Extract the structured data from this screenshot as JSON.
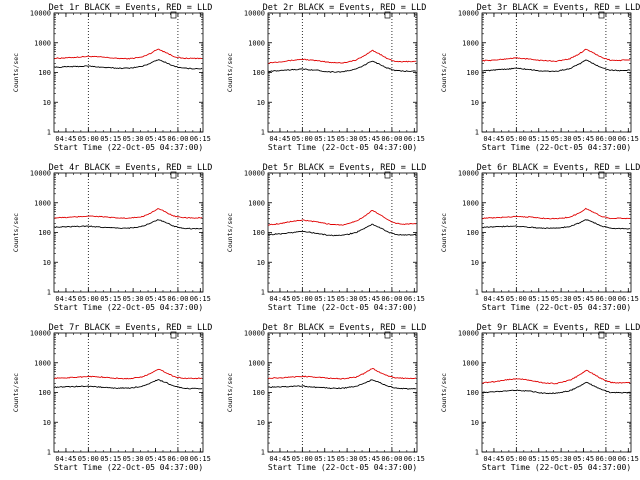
{
  "colors": {
    "events": "#000000",
    "lld": "#e00000",
    "background": "#ffffff"
  },
  "shared": {
    "ylabel": "Counts/sec",
    "xlabel": "Start Time (22-Oct-05 04:37:00)",
    "y_scale": "log",
    "ylim": [
      1,
      10000
    ],
    "y_tick_values": [
      1,
      10,
      100,
      1000,
      10000
    ],
    "y_tick_labels": [
      "1",
      "10",
      "100",
      "1000",
      "10000"
    ],
    "x_tick_labels": [
      "04:45",
      "05:00",
      "05:15",
      "05:30",
      "05:45",
      "06:00",
      "06:15"
    ],
    "x_tick_hours": [
      4.75,
      5.0,
      5.25,
      5.5,
      5.75,
      6.0,
      6.25
    ],
    "xlim_hours": [
      4.6167,
      6.28
    ],
    "vertical_dotted_lines_hours": [
      5.0,
      6.0
    ]
  },
  "chart_data": [
    {
      "type": "line",
      "title": "Det 1r BLACK = Events, RED = LLD",
      "x_hours": [
        4.62,
        4.75,
        4.9,
        5.0,
        5.15,
        5.3,
        5.45,
        5.6,
        5.7,
        5.78,
        5.86,
        5.95,
        6.05,
        6.15,
        6.27
      ],
      "series": [
        {
          "name": "LLD",
          "color": "#e00000",
          "values": [
            300,
            310,
            330,
            350,
            330,
            300,
            290,
            330,
            450,
            620,
            480,
            350,
            300,
            300,
            300
          ]
        },
        {
          "name": "Events",
          "color": "#000000",
          "values": [
            150,
            155,
            160,
            165,
            150,
            140,
            140,
            160,
            210,
            270,
            220,
            165,
            140,
            135,
            135
          ]
        }
      ]
    },
    {
      "type": "line",
      "title": "Det 2r BLACK = Events, RED = LLD",
      "x_hours": [
        4.62,
        4.75,
        4.9,
        5.0,
        5.15,
        5.3,
        5.45,
        5.6,
        5.7,
        5.78,
        5.86,
        5.95,
        6.05,
        6.15,
        6.27
      ],
      "series": [
        {
          "name": "LLD",
          "color": "#e00000",
          "values": [
            210,
            230,
            260,
            280,
            250,
            220,
            210,
            260,
            380,
            560,
            420,
            290,
            230,
            230,
            240
          ]
        },
        {
          "name": "Events",
          "color": "#000000",
          "values": [
            110,
            115,
            125,
            130,
            120,
            105,
            105,
            130,
            180,
            250,
            190,
            140,
            115,
            110,
            115
          ]
        }
      ]
    },
    {
      "type": "line",
      "title": "Det 3r BLACK = Events, RED = LLD",
      "x_hours": [
        4.62,
        4.75,
        4.9,
        5.0,
        5.15,
        5.3,
        5.45,
        5.6,
        5.7,
        5.78,
        5.86,
        5.95,
        6.05,
        6.15,
        6.27
      ],
      "series": [
        {
          "name": "LLD",
          "color": "#e00000",
          "values": [
            250,
            260,
            290,
            310,
            280,
            250,
            240,
            290,
            420,
            620,
            460,
            320,
            260,
            255,
            265
          ]
        },
        {
          "name": "Events",
          "color": "#000000",
          "values": [
            115,
            120,
            130,
            140,
            125,
            110,
            110,
            135,
            190,
            260,
            200,
            145,
            120,
            115,
            120
          ]
        }
      ]
    },
    {
      "type": "line",
      "title": "Det 4r BLACK = Events, RED = LLD",
      "x_hours": [
        4.62,
        4.75,
        4.9,
        5.0,
        5.15,
        5.3,
        5.45,
        5.6,
        5.7,
        5.78,
        5.86,
        5.95,
        6.05,
        6.15,
        6.27
      ],
      "series": [
        {
          "name": "LLD",
          "color": "#e00000",
          "values": [
            310,
            320,
            340,
            360,
            340,
            310,
            300,
            340,
            460,
            640,
            490,
            360,
            310,
            310,
            310
          ]
        },
        {
          "name": "Events",
          "color": "#000000",
          "values": [
            150,
            155,
            160,
            165,
            150,
            140,
            140,
            160,
            210,
            270,
            220,
            165,
            140,
            135,
            135
          ]
        }
      ]
    },
    {
      "type": "line",
      "title": "Det 5r BLACK = Events, RED = LLD",
      "x_hours": [
        4.62,
        4.75,
        4.9,
        5.0,
        5.15,
        5.3,
        5.45,
        5.6,
        5.7,
        5.78,
        5.86,
        5.95,
        6.05,
        6.15,
        6.27
      ],
      "series": [
        {
          "name": "LLD",
          "color": "#e00000",
          "values": [
            180,
            200,
            240,
            260,
            230,
            190,
            180,
            240,
            360,
            550,
            410,
            270,
            200,
            190,
            200
          ]
        },
        {
          "name": "Events",
          "color": "#000000",
          "values": [
            85,
            90,
            100,
            110,
            95,
            80,
            80,
            100,
            140,
            190,
            150,
            105,
            85,
            82,
            85
          ]
        }
      ]
    },
    {
      "type": "line",
      "title": "Det 6r BLACK = Events, RED = LLD",
      "x_hours": [
        4.62,
        4.75,
        4.9,
        5.0,
        5.15,
        5.3,
        5.45,
        5.6,
        5.7,
        5.78,
        5.86,
        5.95,
        6.05,
        6.15,
        6.27
      ],
      "series": [
        {
          "name": "LLD",
          "color": "#e00000",
          "values": [
            300,
            310,
            330,
            350,
            330,
            300,
            290,
            330,
            450,
            640,
            480,
            350,
            300,
            300,
            300
          ]
        },
        {
          "name": "Events",
          "color": "#000000",
          "values": [
            150,
            155,
            160,
            165,
            150,
            140,
            140,
            160,
            210,
            270,
            220,
            165,
            140,
            135,
            135
          ]
        }
      ]
    },
    {
      "type": "line",
      "title": "Det 7r BLACK = Events, RED = LLD",
      "x_hours": [
        4.62,
        4.75,
        4.9,
        5.0,
        5.15,
        5.3,
        5.45,
        5.6,
        5.7,
        5.78,
        5.86,
        5.95,
        6.05,
        6.15,
        6.27
      ],
      "series": [
        {
          "name": "LLD",
          "color": "#e00000",
          "values": [
            300,
            310,
            330,
            350,
            330,
            300,
            290,
            330,
            450,
            620,
            480,
            350,
            300,
            300,
            300
          ]
        },
        {
          "name": "Events",
          "color": "#000000",
          "values": [
            150,
            155,
            160,
            165,
            150,
            140,
            140,
            160,
            210,
            270,
            220,
            165,
            140,
            135,
            135
          ]
        }
      ]
    },
    {
      "type": "line",
      "title": "Det 8r BLACK = Events, RED = LLD",
      "x_hours": [
        4.62,
        4.75,
        4.9,
        5.0,
        5.15,
        5.3,
        5.45,
        5.6,
        5.7,
        5.78,
        5.86,
        5.95,
        6.05,
        6.15,
        6.27
      ],
      "series": [
        {
          "name": "LLD",
          "color": "#e00000",
          "values": [
            300,
            310,
            330,
            350,
            330,
            300,
            290,
            330,
            450,
            650,
            490,
            360,
            310,
            300,
            300
          ]
        },
        {
          "name": "Events",
          "color": "#000000",
          "values": [
            150,
            155,
            160,
            165,
            150,
            140,
            140,
            160,
            210,
            270,
            220,
            165,
            140,
            135,
            135
          ]
        }
      ]
    },
    {
      "type": "line",
      "title": "Det 9r BLACK = Events, RED = LLD",
      "x_hours": [
        4.62,
        4.75,
        4.9,
        5.0,
        5.15,
        5.3,
        5.45,
        5.6,
        5.7,
        5.78,
        5.86,
        5.95,
        6.05,
        6.15,
        6.27
      ],
      "series": [
        {
          "name": "LLD",
          "color": "#e00000",
          "values": [
            210,
            230,
            270,
            290,
            260,
            210,
            200,
            260,
            380,
            560,
            420,
            290,
            220,
            210,
            220
          ]
        },
        {
          "name": "Events",
          "color": "#000000",
          "values": [
            100,
            105,
            115,
            120,
            110,
            95,
            95,
            115,
            160,
            220,
            170,
            125,
            100,
            98,
            100
          ]
        }
      ]
    }
  ]
}
